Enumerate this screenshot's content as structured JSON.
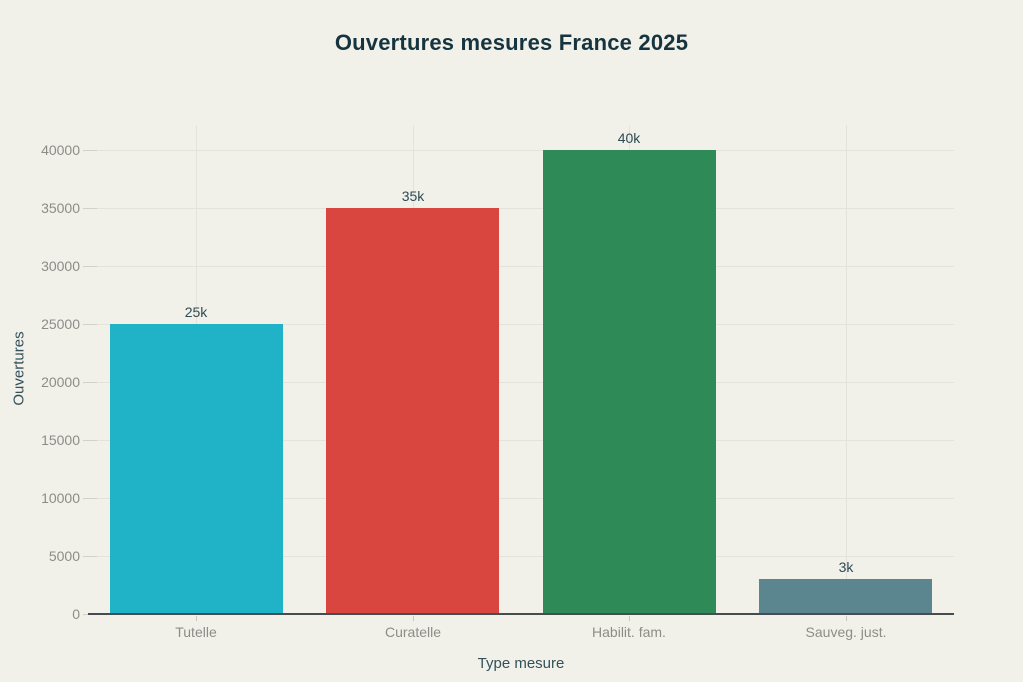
{
  "title": "Ouvertures mesures France 2025",
  "chart_data": {
    "type": "bar",
    "title": "Ouvertures mesures France 2025",
    "xlabel": "Type mesure",
    "ylabel": "Ouvertures",
    "categories": [
      "Tutelle",
      "Curatelle",
      "Habilit. fam.",
      "Sauveg. just."
    ],
    "values": [
      25000,
      35000,
      40000,
      3000
    ],
    "bar_labels": [
      "25k",
      "35k",
      "40k",
      "3k"
    ],
    "bar_colors": [
      "#20b3c7",
      "#d8463f",
      "#2e8b57",
      "#5c868f"
    ],
    "yticks": [
      0,
      5000,
      10000,
      15000,
      20000,
      25000,
      30000,
      35000,
      40000
    ],
    "ylim": [
      0,
      42000
    ],
    "grid": true,
    "legend": "none",
    "background_color": "#f1f1ea",
    "title_color": "#16343f",
    "axis_label_color": "#33505a",
    "tick_label_color": "#8c8c89"
  }
}
